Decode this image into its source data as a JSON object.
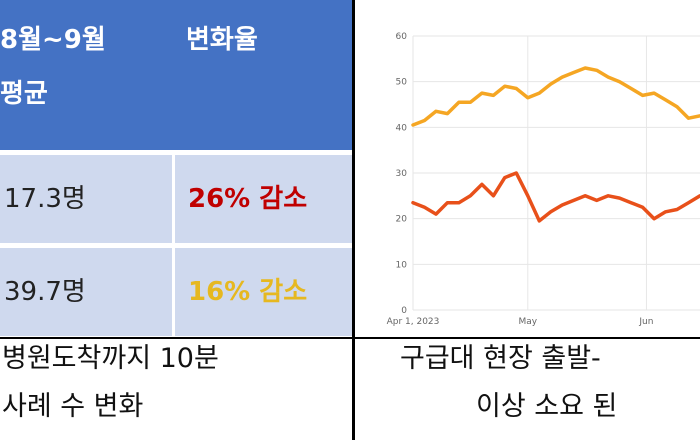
{
  "table": {
    "header": {
      "col1_line1": "8월~9월",
      "col1_line2": "평균",
      "col2": "변화율"
    },
    "rows": [
      {
        "value": "17.3명",
        "change": "26% 감소",
        "change_color": "#C00000"
      },
      {
        "value": "39.7명",
        "change": "16% 감소",
        "change_color": "#E6B820"
      }
    ]
  },
  "captions": {
    "left_line1": "병원도착까지 10분",
    "left_line2": "사례 수 변화",
    "right_line1": "구급대 현장 출발-",
    "right_line2": "이상 소요 된"
  },
  "chart_data": {
    "type": "line",
    "ylim": [
      0,
      60
    ],
    "yticks": [
      0,
      10,
      20,
      30,
      40,
      50,
      60
    ],
    "xticks": [
      {
        "x": 0,
        "label": "Apr 1, 2023"
      },
      {
        "x": 30,
        "label": "May"
      },
      {
        "x": 61,
        "label": "Jun"
      }
    ],
    "xlim": [
      0,
      75
    ],
    "grid": true,
    "series": [
      {
        "color": "#F5A623",
        "x": [
          0,
          3,
          6,
          9,
          12,
          15,
          18,
          21,
          24,
          27,
          30,
          33,
          36,
          39,
          42,
          45,
          48,
          51,
          54,
          57,
          60,
          63,
          66,
          69,
          72,
          75
        ],
        "values": [
          40.5,
          41.5,
          43.5,
          43.0,
          45.5,
          45.5,
          47.5,
          47.0,
          49.0,
          48.5,
          46.5,
          47.5,
          49.5,
          51.0,
          52.0,
          53.0,
          52.5,
          51.0,
          50.0,
          48.5,
          47.0,
          47.5,
          46.0,
          44.5,
          42.0,
          42.5
        ]
      },
      {
        "color": "#E8501A",
        "x": [
          0,
          3,
          6,
          9,
          12,
          15,
          18,
          21,
          24,
          27,
          30,
          33,
          36,
          39,
          42,
          45,
          48,
          51,
          54,
          57,
          60,
          63,
          66,
          69,
          72,
          75
        ],
        "values": [
          23.5,
          22.5,
          21.0,
          23.5,
          23.5,
          25.0,
          27.5,
          25.0,
          29.0,
          30.0,
          25.0,
          19.5,
          21.5,
          23.0,
          24.0,
          25.0,
          24.0,
          25.0,
          24.5,
          23.5,
          22.5,
          20.0,
          21.5,
          22.0,
          23.5,
          25.0
        ]
      }
    ]
  }
}
